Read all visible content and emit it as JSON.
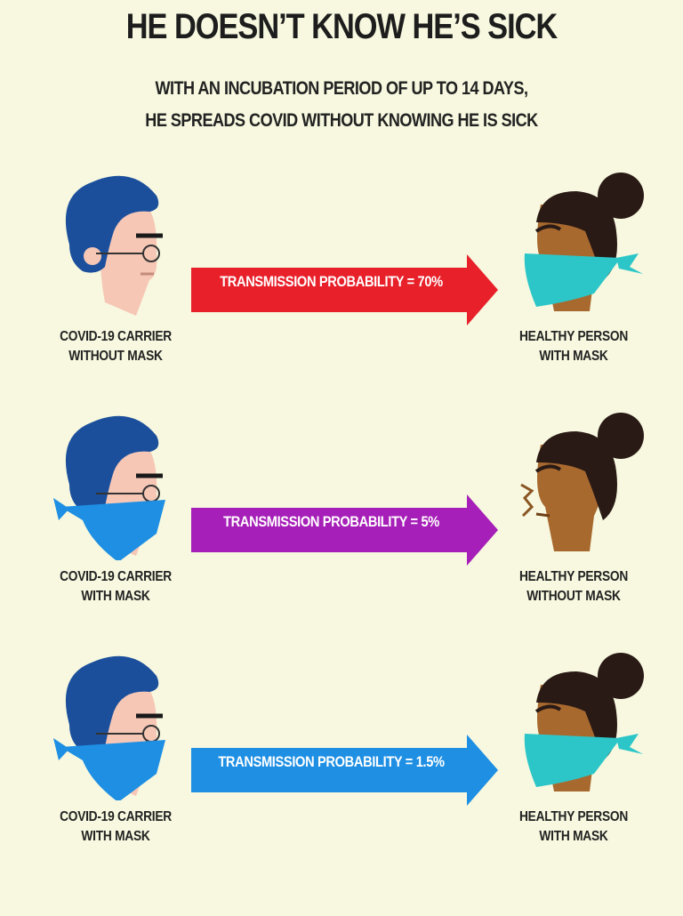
{
  "header": {
    "title": "HE DOESN’T KNOW HE’S SICK",
    "subtitle_line1": "WITH AN INCUBATION PERIOD OF UP TO 14 DAYS,",
    "subtitle_line2": "HE SPREADS COVID WITHOUT KNOWING HE IS SICK"
  },
  "rows": [
    {
      "arrow_label": "TRANSMISSION PROBABILITY = 70%",
      "arrow_color": "#e8202a",
      "left_caption_line1": "COVID-19 CARRIER",
      "left_caption_line2": "WITHOUT MASK",
      "right_caption_line1": "HEALTHY PERSON",
      "right_caption_line2": "WITH MASK"
    },
    {
      "arrow_label": "TRANSMISSION PROBABILITY = 5%",
      "arrow_color": "#a61fb8",
      "left_caption_line1": "COVID-19 CARRIER",
      "left_caption_line2": "WITH MASK",
      "right_caption_line1": "HEALTHY PERSON",
      "right_caption_line2": "WITHOUT MASK"
    },
    {
      "arrow_label": "TRANSMISSION PROBABILITY = 1.5%",
      "arrow_color": "#1e8fe3",
      "left_caption_line1": "COVID-19 CARRIER",
      "left_caption_line2": "WITH MASK",
      "right_caption_line1": "HEALTHY PERSON",
      "right_caption_line2": "WITH MASK"
    }
  ],
  "colors": {
    "background": "#f7f8df",
    "carrier_hair": "#1b4f9c",
    "carrier_mask": "#1e8fe3",
    "healthy_mask": "#2cc6c9",
    "healthy_skin": "#a8692f",
    "healthy_hair": "#2a1a16"
  }
}
